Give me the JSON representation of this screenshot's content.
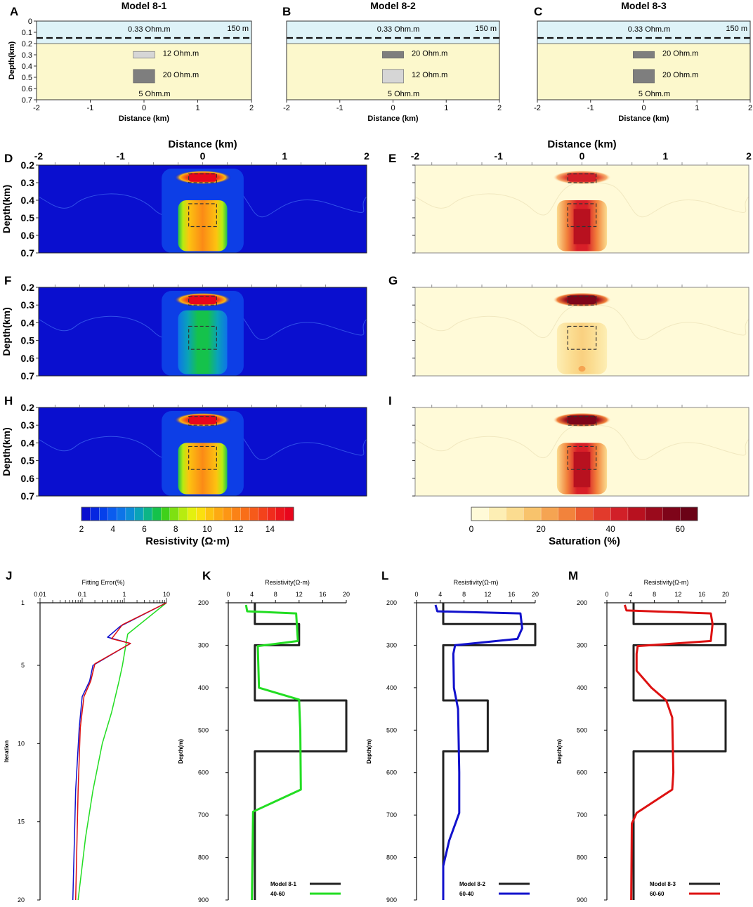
{
  "panel_labels": {
    "A": "A",
    "B": "B",
    "C": "C",
    "D": "D",
    "E": "E",
    "F": "F",
    "G": "G",
    "H": "H",
    "I": "I",
    "J": "J",
    "K": "K",
    "L": "L",
    "M": "M"
  },
  "models": [
    {
      "id": "A",
      "title": "Model 8-1",
      "sea_res": "0.33 Ohm.m",
      "sea_depth": "150 m",
      "upper_block": "12 Ohm.m",
      "lower_block": "20 Ohm.m",
      "upper_shade": "light",
      "lower_shade": "dark",
      "background": "5 Ohm.m",
      "xlabel": "Distance (km)",
      "ylabel": "Depth(km)"
    },
    {
      "id": "B",
      "title": "Model 8-2",
      "sea_res": "0.33 Ohm.m",
      "sea_depth": "150 m",
      "upper_block": "20 Ohm.m",
      "lower_block": "12 Ohm.m",
      "upper_shade": "dark",
      "lower_shade": "light",
      "background": "5 Ohm.m",
      "xlabel": "Distance (km)",
      "ylabel": ""
    },
    {
      "id": "C",
      "title": "Model 8-3",
      "sea_res": "0.33 Ohm.m",
      "sea_depth": "150 m",
      "upper_block": "20 Ohm.m",
      "lower_block": "20 Ohm.m",
      "upper_shade": "dark",
      "lower_shade": "dark",
      "background": "5 Ohm.m",
      "xlabel": "Distance (km)",
      "ylabel": ""
    }
  ],
  "model_axes": {
    "x_ticks": [
      "-2",
      "-1",
      "0",
      "1",
      "2"
    ],
    "y_ticks": [
      "0",
      "0.1",
      "0.2",
      "0.3",
      "0.4",
      "0.5",
      "0.6",
      "0.7"
    ]
  },
  "sections": {
    "xlabel": "Distance (km)",
    "ylabel": "Depth(km)",
    "x_ticks": [
      "-2",
      "-1",
      "0",
      "1",
      "2"
    ],
    "y_ticks": [
      "0.2",
      "0.3",
      "0.4",
      "0.5",
      "0.6",
      "0.7"
    ],
    "resistivity_colorbar": {
      "label": "Resistivity (Ω·m)",
      "ticks": [
        "2",
        "4",
        "6",
        "8",
        "10",
        "12",
        "14"
      ],
      "min": 2,
      "max": 15.5,
      "colors": [
        "#0a0fcf",
        "#0626e0",
        "#0540ea",
        "#0a5cee",
        "#0d74e8",
        "#0c8cd8",
        "#0aa3b8",
        "#0db586",
        "#15c24b",
        "#3fd11a",
        "#7ee012",
        "#b7ec10",
        "#e4f00f",
        "#fbe00f",
        "#fdc310",
        "#fdaa12",
        "#fd9614",
        "#fb8216",
        "#f96e18",
        "#f65a1a",
        "#f3421b",
        "#f02c1c",
        "#ec161c",
        "#e8061c"
      ]
    },
    "saturation_colorbar": {
      "label": "Saturation (%)",
      "ticks": [
        "0",
        "20",
        "40",
        "60"
      ],
      "min": 0,
      "max": 65,
      "colors": [
        "#fffad8",
        "#fdeeb4",
        "#fbdc90",
        "#f8c36c",
        "#f5a452",
        "#f2833c",
        "#ec5a30",
        "#e23a2c",
        "#d12028",
        "#b8111f",
        "#9a0a1c",
        "#7e0419",
        "#6b0216"
      ]
    },
    "panels": [
      {
        "id": "D",
        "type": "resistivity",
        "upper_core": "red",
        "lower_core": "orange"
      },
      {
        "id": "E",
        "type": "saturation",
        "upper_core": "red",
        "lower_core": "red"
      },
      {
        "id": "F",
        "type": "resistivity",
        "upper_core": "red",
        "lower_core": "green"
      },
      {
        "id": "G",
        "type": "saturation",
        "upper_core": "darkred",
        "lower_core": "pale"
      },
      {
        "id": "H",
        "type": "resistivity",
        "upper_core": "red",
        "lower_core": "orange"
      },
      {
        "id": "I",
        "type": "saturation",
        "upper_core": "darkred",
        "lower_core": "red"
      }
    ]
  },
  "chart_data": [
    {
      "id": "J",
      "type": "line",
      "xlabel": "Fitting Error(%)",
      "ylabel": "Iteration",
      "xscale": "log",
      "xlim": [
        0.01,
        10
      ],
      "ylim": [
        1,
        20
      ],
      "x_ticks": [
        "0.01",
        "0.1",
        "1",
        "10"
      ],
      "y_ticks": [
        "1",
        "5",
        "10",
        "15",
        "20"
      ],
      "series": [
        {
          "name": "Model 8-1 (40-60)",
          "color": "#22dd22",
          "points": [
            [
              10,
              1
            ],
            [
              1.2,
              3
            ],
            [
              0.9,
              5
            ],
            [
              0.75,
              6
            ],
            [
              0.5,
              8
            ],
            [
              0.3,
              10
            ],
            [
              0.18,
              13
            ],
            [
              0.12,
              16
            ],
            [
              0.08,
              20
            ]
          ]
        },
        {
          "name": "Model 8-2 (60-40)",
          "color": "#1010cc",
          "points": [
            [
              10,
              1
            ],
            [
              0.8,
              2.5
            ],
            [
              0.4,
              3.2
            ],
            [
              1.4,
              3.6
            ],
            [
              0.18,
              5
            ],
            [
              0.15,
              6
            ],
            [
              0.1,
              7
            ],
            [
              0.085,
              9
            ],
            [
              0.07,
              13
            ],
            [
              0.06,
              20
            ]
          ]
        },
        {
          "name": "Model 8-3 (60-60)",
          "color": "#dd1111",
          "points": [
            [
              10,
              1
            ],
            [
              0.9,
              2.4
            ],
            [
              0.5,
              3.3
            ],
            [
              1.4,
              3.6
            ],
            [
              0.2,
              4.9
            ],
            [
              0.16,
              6
            ],
            [
              0.11,
              7
            ],
            [
              0.09,
              9
            ],
            [
              0.08,
              13
            ],
            [
              0.07,
              20
            ]
          ]
        }
      ]
    },
    {
      "id": "K",
      "type": "line",
      "xlabel": "Resistivity(Ω-m)",
      "ylabel": "Depth(m)",
      "xlim": [
        0,
        20
      ],
      "ylim": [
        200,
        900
      ],
      "x_ticks": [
        "0",
        "4",
        "8",
        "12",
        "16",
        "20"
      ],
      "y_ticks": [
        "200",
        "300",
        "400",
        "500",
        "600",
        "700",
        "800",
        "900"
      ],
      "legend": [
        "Model 8-1",
        "40-60"
      ],
      "series": [
        {
          "name": "Model 8-1",
          "color": "#222222",
          "points": [
            [
              4.5,
              200
            ],
            [
              4.5,
              250
            ],
            [
              12,
              250
            ],
            [
              12,
              300
            ],
            [
              4.5,
              300
            ],
            [
              4.5,
              430
            ],
            [
              20,
              430
            ],
            [
              20,
              550
            ],
            [
              4.5,
              550
            ],
            [
              4.5,
              900
            ]
          ]
        },
        {
          "name": "40-60",
          "color": "#22dd22",
          "points": [
            [
              3,
              205
            ],
            [
              3.2,
              220
            ],
            [
              11.5,
              225
            ],
            [
              11.8,
              290
            ],
            [
              5,
              302
            ],
            [
              5.2,
              400
            ],
            [
              12,
              428
            ],
            [
              12.2,
              500
            ],
            [
              12.3,
              640
            ],
            [
              4.2,
              692
            ],
            [
              4,
              900
            ]
          ]
        }
      ]
    },
    {
      "id": "L",
      "type": "line",
      "xlabel": "Resistivity(Ω-m)",
      "ylabel": "Depth(m)",
      "xlim": [
        0,
        20
      ],
      "ylim": [
        200,
        900
      ],
      "x_ticks": [
        "0",
        "4",
        "8",
        "12",
        "16",
        "20"
      ],
      "y_ticks": [
        "200",
        "300",
        "400",
        "500",
        "600",
        "700",
        "800",
        "900"
      ],
      "legend": [
        "Model 8-2",
        "60-40"
      ],
      "series": [
        {
          "name": "Model 8-2",
          "color": "#222222",
          "points": [
            [
              4.5,
              200
            ],
            [
              4.5,
              250
            ],
            [
              20,
              250
            ],
            [
              20,
              300
            ],
            [
              4.5,
              300
            ],
            [
              4.5,
              430
            ],
            [
              12,
              430
            ],
            [
              12,
              550
            ],
            [
              4.5,
              550
            ],
            [
              4.5,
              900
            ]
          ]
        },
        {
          "name": "60-40",
          "color": "#1111cc",
          "points": [
            [
              3.2,
              205
            ],
            [
              3.5,
              220
            ],
            [
              17.5,
              225
            ],
            [
              17.8,
              260
            ],
            [
              17,
              285
            ],
            [
              6.5,
              300
            ],
            [
              6.2,
              320
            ],
            [
              6.3,
              400
            ],
            [
              7,
              450
            ],
            [
              7.2,
              600
            ],
            [
              7.2,
              695
            ],
            [
              5.5,
              760
            ],
            [
              4.5,
              820
            ],
            [
              4.5,
              900
            ]
          ]
        }
      ]
    },
    {
      "id": "M",
      "type": "line",
      "xlabel": "Resistivity(Ω-m)",
      "ylabel": "Depth(m)",
      "xlim": [
        0,
        20
      ],
      "ylim": [
        200,
        900
      ],
      "x_ticks": [
        "0",
        "4",
        "8",
        "12",
        "16",
        "20"
      ],
      "y_ticks": [
        "200",
        "300",
        "400",
        "500",
        "600",
        "700",
        "800",
        "900"
      ],
      "legend": [
        "Model 8-3",
        "60-60"
      ],
      "series": [
        {
          "name": "Model 8-3",
          "color": "#222222",
          "points": [
            [
              4.5,
              200
            ],
            [
              4.5,
              250
            ],
            [
              20,
              250
            ],
            [
              20,
              300
            ],
            [
              4.5,
              300
            ],
            [
              4.5,
              430
            ],
            [
              20,
              430
            ],
            [
              20,
              550
            ],
            [
              4.5,
              550
            ],
            [
              4.5,
              900
            ]
          ]
        },
        {
          "name": "60-60",
          "color": "#dd1111",
          "points": [
            [
              3,
              205
            ],
            [
              3.3,
              218
            ],
            [
              17.5,
              225
            ],
            [
              17.8,
              250
            ],
            [
              17.5,
              290
            ],
            [
              5.2,
              302
            ],
            [
              5,
              320
            ],
            [
              5,
              360
            ],
            [
              7.5,
              400
            ],
            [
              10,
              430
            ],
            [
              11,
              470
            ],
            [
              11.2,
              600
            ],
            [
              11,
              640
            ],
            [
              5,
              695
            ],
            [
              4.2,
              720
            ],
            [
              4.1,
              900
            ]
          ]
        }
      ]
    }
  ]
}
